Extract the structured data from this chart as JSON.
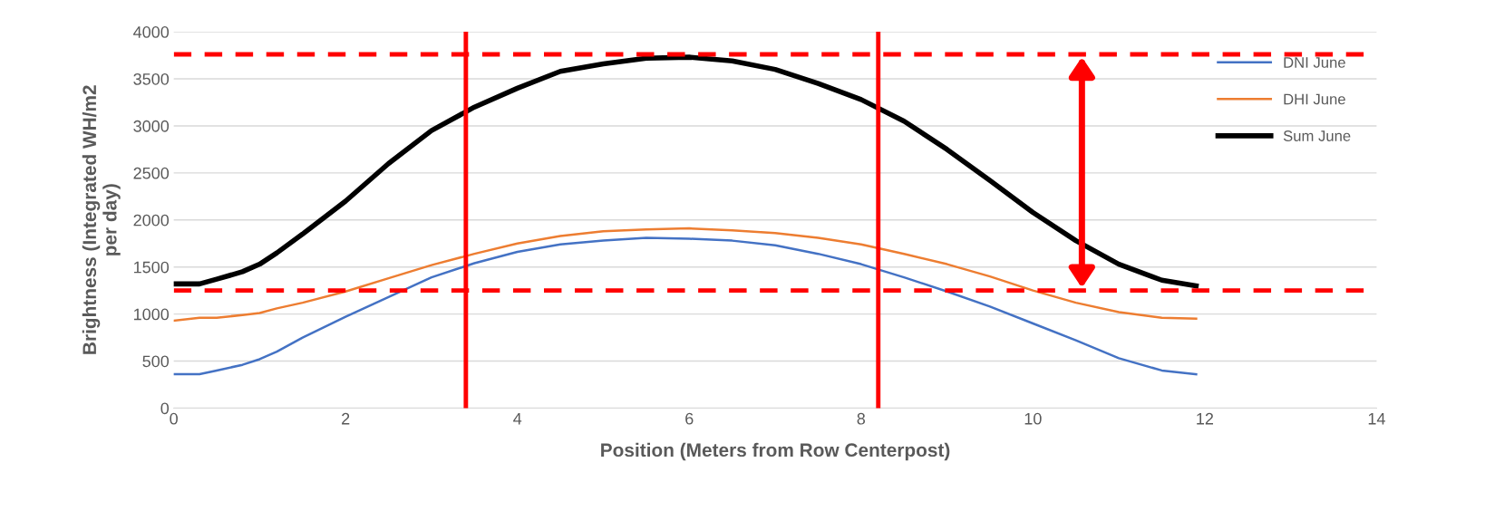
{
  "chart_data": {
    "type": "line",
    "xlabel": "Position (Meters from Row Centerpost)",
    "ylabel": "Brightness (Integrated WH/m2\nper day)",
    "xlim": [
      0,
      14
    ],
    "xticks": [
      0,
      2,
      4,
      6,
      8,
      10,
      12,
      14
    ],
    "ylim": [
      0,
      4000
    ],
    "yticks": [
      0,
      500,
      1000,
      1500,
      2000,
      2500,
      3000,
      3500,
      4000
    ],
    "grid": "y",
    "legend": "top right",
    "marker": "none",
    "line_style": "solid",
    "x": [
      0,
      0.3,
      0.5,
      0.8,
      1,
      1.2,
      1.5,
      2,
      2.5,
      3,
      3.5,
      4,
      4.5,
      5,
      5.5,
      6,
      6.5,
      7,
      7.5,
      8,
      8.5,
      9,
      9.5,
      10,
      10.5,
      11,
      11.5,
      11.9
    ],
    "series": [
      {
        "name": "DNI June",
        "color": "#4472c4",
        "values": [
          360,
          360,
          400,
          460,
          520,
          600,
          750,
          970,
          1180,
          1390,
          1540,
          1660,
          1740,
          1780,
          1810,
          1800,
          1780,
          1730,
          1640,
          1530,
          1390,
          1240,
          1080,
          900,
          720,
          530,
          400,
          360
        ]
      },
      {
        "name": "DHI June",
        "color": "#ed7d31",
        "values": [
          930,
          960,
          960,
          990,
          1010,
          1060,
          1120,
          1240,
          1380,
          1520,
          1640,
          1750,
          1830,
          1880,
          1900,
          1910,
          1890,
          1860,
          1810,
          1740,
          1640,
          1530,
          1400,
          1250,
          1120,
          1020,
          960,
          950
        ]
      },
      {
        "name": "Sum June",
        "color": "#000000",
        "values": [
          1320,
          1320,
          1370,
          1450,
          1530,
          1650,
          1850,
          2200,
          2600,
          2950,
          3200,
          3400,
          3580,
          3660,
          3720,
          3730,
          3690,
          3600,
          3450,
          3280,
          3050,
          2750,
          2420,
          2080,
          1780,
          1530,
          1360,
          1300
        ]
      }
    ],
    "ref_lines": [
      {
        "axis": "x",
        "value": 3.4,
        "color": "#ff0000",
        "line_style": "solid"
      },
      {
        "axis": "x",
        "value": 8.2,
        "color": "#ff0000",
        "line_style": "solid"
      },
      {
        "axis": "y",
        "value": 3760,
        "color": "#ff0000",
        "line_style": "dashed"
      },
      {
        "axis": "y",
        "value": 1250,
        "color": "#ff0000",
        "line_style": "dashed"
      }
    ]
  }
}
